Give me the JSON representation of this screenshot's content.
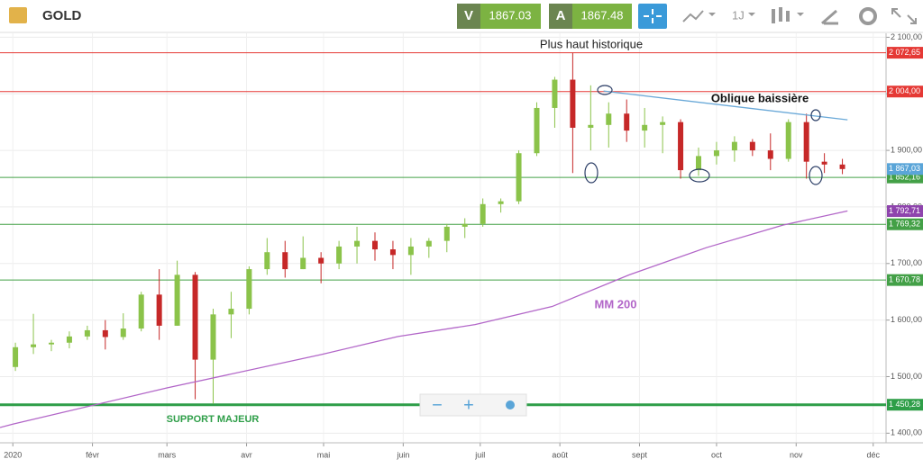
{
  "header": {
    "symbol": "GOLD",
    "bid_tag": "V",
    "bid": "1867.03",
    "ask_tag": "A",
    "ask": "1867.48",
    "period": "1J"
  },
  "chart_data": {
    "type": "candlestick",
    "xlim": [
      -5,
      340
    ],
    "xticks": [
      {
        "value": 0,
        "label": "2020"
      },
      {
        "value": 31,
        "label": "févr"
      },
      {
        "value": 60,
        "label": "mars"
      },
      {
        "value": 91,
        "label": "avr"
      },
      {
        "value": 121,
        "label": "mai"
      },
      {
        "value": 152,
        "label": "juin"
      },
      {
        "value": 182,
        "label": "juil"
      },
      {
        "value": 213,
        "label": "août"
      },
      {
        "value": 244,
        "label": "sept"
      },
      {
        "value": 274,
        "label": "oct"
      },
      {
        "value": 305,
        "label": "nov"
      },
      {
        "value": 335,
        "label": "déc"
      }
    ],
    "ylim": [
      1383,
      2107
    ],
    "yticks": [
      {
        "value": 2100,
        "label": "2 100,00"
      },
      {
        "value": 2000,
        "label": "2 000,00"
      },
      {
        "value": 1900,
        "label": "1 900,00"
      },
      {
        "value": 1800,
        "label": "1 800,00"
      },
      {
        "value": 1700,
        "label": "1 700,00"
      },
      {
        "value": 1600,
        "label": "1 600,00"
      },
      {
        "value": 1500,
        "label": "1 500,00"
      },
      {
        "value": 1400,
        "label": "1 400,00"
      }
    ],
    "grid": true,
    "up_color": "#8bc34a",
    "down_color": "#c62828",
    "x": [
      1,
      8,
      15,
      22,
      29,
      36,
      43,
      50,
      57,
      64,
      71,
      78,
      85,
      92,
      99,
      106,
      113,
      120,
      127,
      134,
      141,
      148,
      155,
      162,
      169,
      176,
      183,
      190,
      197,
      204,
      211,
      218,
      225,
      232,
      239,
      246,
      253,
      260,
      267,
      274,
      281,
      288,
      295,
      302,
      309,
      316,
      323
    ],
    "open": [
      1517,
      1552,
      1557,
      1560,
      1571,
      1582,
      1570,
      1585,
      1645,
      1590,
      1680,
      1530,
      1610,
      1620,
      1690,
      1720,
      1690,
      1710,
      1700,
      1730,
      1740,
      1725,
      1715,
      1730,
      1740,
      1765,
      1770,
      1805,
      1810,
      1895,
      1975,
      2025,
      1940,
      1945,
      1965,
      1935,
      1945,
      1950,
      1865,
      1890,
      1900,
      1915,
      1900,
      1885,
      1950,
      1880,
      1875
    ],
    "high": [
      1560,
      1611,
      1565,
      1580,
      1590,
      1600,
      1612,
      1650,
      1690,
      1705,
      1685,
      1620,
      1650,
      1695,
      1745,
      1740,
      1748,
      1720,
      1740,
      1765,
      1755,
      1740,
      1745,
      1745,
      1770,
      1780,
      1815,
      1815,
      1900,
      1985,
      2030,
      2072.65,
      2015,
      1985,
      1990,
      1975,
      1960,
      1955,
      1905,
      1915,
      1925,
      1920,
      1930,
      1955,
      1965,
      1895,
      1885
    ],
    "low": [
      1510,
      1540,
      1545,
      1550,
      1565,
      1548,
      1565,
      1580,
      1565,
      1590,
      1460,
      1452,
      1568,
      1610,
      1680,
      1675,
      1690,
      1665,
      1690,
      1700,
      1705,
      1690,
      1680,
      1710,
      1720,
      1745,
      1765,
      1790,
      1805,
      1890,
      1940,
      1860,
      1900,
      1905,
      1915,
      1905,
      1895,
      1850,
      1855,
      1875,
      1880,
      1890,
      1865,
      1880,
      1850,
      1860,
      1858
    ],
    "close": [
      1552,
      1557,
      1560,
      1571,
      1582,
      1570,
      1585,
      1645,
      1590,
      1680,
      1530,
      1610,
      1620,
      1690,
      1720,
      1690,
      1710,
      1700,
      1730,
      1740,
      1725,
      1715,
      1730,
      1740,
      1765,
      1770,
      1805,
      1810,
      1895,
      1975,
      2025,
      1940,
      1945,
      1965,
      1935,
      1945,
      1950,
      1865,
      1890,
      1900,
      1915,
      1900,
      1885,
      1950,
      1880,
      1875,
      1867
    ],
    "ma": {
      "name": "MM 200",
      "color": "#b266c8",
      "x": [
        -5,
        0,
        60,
        120,
        150,
        180,
        210,
        240,
        270,
        300,
        325
      ],
      "values": [
        1410,
        1416,
        1480,
        1539,
        1571,
        1592,
        1624,
        1680,
        1728,
        1768,
        1793
      ]
    },
    "trendline": {
      "name": "Oblique baissière",
      "color": "#6aa9d8",
      "x": [
        230,
        325
      ],
      "values": [
        2005,
        1954
      ]
    },
    "levels": [
      {
        "value": 2072.65,
        "label": "2 072,65",
        "color": "#e53935"
      },
      {
        "value": 2004,
        "label": "2 004,00",
        "color": "#e53935"
      },
      {
        "value": 1852.16,
        "label": "1 852,16",
        "color": "#43a047"
      },
      {
        "value": 1769.32,
        "label": "1 769,32",
        "color": "#43a047"
      },
      {
        "value": 1670.78,
        "label": "1 670,78",
        "color": "#43a047"
      },
      {
        "value": 1450.28,
        "label": "1 450,28",
        "color": "#2e9e48"
      }
    ],
    "markers": [
      {
        "value": 1867.03,
        "label": "1 867,03",
        "color": "#5aa5d8"
      },
      {
        "value": 1792.71,
        "label": "1 792,71",
        "color": "#8e44ad"
      }
    ],
    "annotations": [
      "Plus haut historique",
      "SUPPORT MAJEUR"
    ]
  }
}
